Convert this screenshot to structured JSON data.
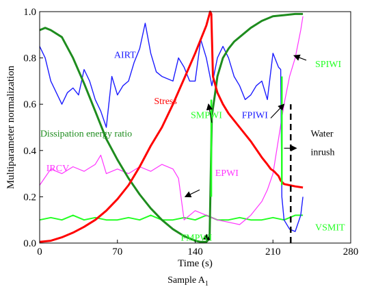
{
  "caption": {
    "text": "Sample A",
    "subscript": "1"
  },
  "chart_data": {
    "type": "line",
    "xlabel": "Time (s)",
    "ylabel": "Multiparameter normalization",
    "xlim": [
      0,
      280
    ],
    "ylim": [
      0,
      1
    ],
    "xticks": [
      "0",
      "70",
      "140",
      "210",
      "280"
    ],
    "yticks": [
      "0.0",
      "0.2",
      "0.4",
      "0.6",
      "0.8",
      "1.0"
    ],
    "grid": false,
    "legend": "none",
    "colors": {
      "AIRT": "#1a1aff",
      "Stress": "#ff0000",
      "Dissipation energy ratio": "#1e8c1e",
      "IRCV": "#ff33ff",
      "SPIWI": "#22ff22",
      "water_inrush_line": "#000000"
    },
    "series": [
      {
        "name": "Stress",
        "x": [
          0,
          10,
          20,
          30,
          40,
          50,
          60,
          70,
          80,
          90,
          100,
          110,
          120,
          130,
          140,
          150,
          153.5,
          154.5,
          156,
          160,
          165,
          170,
          180,
          190,
          200,
          205,
          208,
          211,
          213,
          215,
          217,
          220,
          225,
          230,
          237
        ],
        "y": [
          0.005,
          0.01,
          0.025,
          0.045,
          0.07,
          0.1,
          0.14,
          0.19,
          0.25,
          0.33,
          0.42,
          0.5,
          0.6,
          0.71,
          0.82,
          0.94,
          1.0,
          0.99,
          0.72,
          0.65,
          0.6,
          0.56,
          0.5,
          0.44,
          0.37,
          0.34,
          0.32,
          0.31,
          0.3,
          0.29,
          0.27,
          0.255,
          0.25,
          0.245,
          0.24
        ]
      },
      {
        "name": "Dissipation energy ratio",
        "x": [
          0,
          5,
          10,
          20,
          30,
          40,
          50,
          60,
          70,
          80,
          90,
          100,
          110,
          120,
          130,
          140,
          145,
          150,
          153,
          154,
          155,
          158,
          160,
          165,
          170,
          175,
          180,
          190,
          200,
          210,
          220,
          230,
          237
        ],
        "y": [
          0.92,
          0.93,
          0.92,
          0.89,
          0.8,
          0.69,
          0.57,
          0.45,
          0.36,
          0.28,
          0.21,
          0.15,
          0.1,
          0.06,
          0.03,
          0.01,
          0.005,
          0.005,
          0.02,
          0.3,
          0.55,
          0.65,
          0.72,
          0.8,
          0.84,
          0.87,
          0.89,
          0.93,
          0.96,
          0.98,
          0.985,
          0.99,
          0.99
        ]
      },
      {
        "name": "AIRT",
        "x": [
          0,
          5,
          10,
          15,
          20,
          25,
          30,
          35,
          40,
          45,
          50,
          55,
          60,
          65,
          70,
          75,
          80,
          85,
          90,
          95,
          100,
          105,
          110,
          115,
          120,
          125,
          130,
          135,
          140,
          145,
          150,
          155,
          160,
          165,
          170,
          175,
          180,
          185,
          190,
          195,
          200,
          205,
          210,
          215,
          217,
          218,
          220,
          225,
          230,
          235,
          237
        ],
        "y": [
          0.85,
          0.8,
          0.7,
          0.65,
          0.6,
          0.65,
          0.67,
          0.64,
          0.75,
          0.7,
          0.62,
          0.57,
          0.5,
          0.72,
          0.64,
          0.68,
          0.7,
          0.78,
          0.84,
          0.95,
          0.82,
          0.74,
          0.72,
          0.71,
          0.7,
          0.8,
          0.76,
          0.7,
          0.7,
          0.88,
          0.8,
          0.68,
          0.8,
          0.85,
          0.8,
          0.72,
          0.68,
          0.62,
          0.64,
          0.68,
          0.7,
          0.62,
          0.82,
          0.76,
          0.75,
          0.2,
          0.1,
          0.06,
          0.05,
          0.12,
          0.2
        ]
      },
      {
        "name": "IRCV",
        "x": [
          0,
          10,
          20,
          30,
          40,
          50,
          55,
          60,
          70,
          80,
          90,
          100,
          110,
          120,
          125,
          130,
          140,
          150,
          160,
          170,
          180,
          190,
          200,
          205,
          210,
          215,
          220,
          225,
          230,
          235,
          237
        ],
        "y": [
          0.25,
          0.32,
          0.3,
          0.33,
          0.31,
          0.34,
          0.38,
          0.3,
          0.32,
          0.3,
          0.33,
          0.31,
          0.34,
          0.32,
          0.28,
          0.1,
          0.14,
          0.12,
          0.1,
          0.09,
          0.08,
          0.12,
          0.18,
          0.23,
          0.3,
          0.45,
          0.6,
          0.72,
          0.8,
          0.92,
          0.98
        ]
      },
      {
        "name": "SPIWI",
        "x": [
          0,
          10,
          20,
          30,
          40,
          50,
          60,
          70,
          80,
          90,
          100,
          110,
          120,
          130,
          140,
          150,
          160,
          170,
          180,
          190,
          200,
          210,
          220,
          230,
          237
        ],
        "y": [
          0.1,
          0.11,
          0.1,
          0.12,
          0.1,
          0.11,
          0.1,
          0.1,
          0.11,
          0.1,
          0.12,
          0.1,
          0.1,
          0.11,
          0.1,
          0.12,
          0.1,
          0.1,
          0.11,
          0.1,
          0.1,
          0.11,
          0.1,
          0.12,
          0.12
        ]
      }
    ],
    "spikes": [
      {
        "name": "SMPWI",
        "x": 154.5,
        "y_from": 0.2,
        "y_to": 0.62
      },
      {
        "name": "FPIWI",
        "x": 218,
        "y_from": 0.72,
        "y_to": 0.25
      }
    ],
    "water_inrush_line": {
      "x": 226,
      "y_from": 0.0,
      "y_to": 0.6
    },
    "annotations": [
      {
        "text": "AIRT",
        "at": [
          67,
          0.8
        ],
        "color": "#1a1aff"
      },
      {
        "text": "Stress",
        "at": [
          103,
          0.6
        ],
        "color": "#ff0000"
      },
      {
        "text": "SMPWI",
        "at": [
          136,
          0.54
        ],
        "color": "#22ff22"
      },
      {
        "text": "FPIWI",
        "at": [
          182,
          0.54
        ],
        "color": "#1a1aff"
      },
      {
        "text": "SPIWI",
        "at": [
          248,
          0.76
        ],
        "color": "#22ff22"
      },
      {
        "text": "Dissipation energy ratio",
        "at": [
          0.5,
          0.46
        ],
        "color": "#1e8c1e"
      },
      {
        "text": "IRCV",
        "at": [
          6,
          0.31
        ],
        "color": "#ff33ff"
      },
      {
        "text": "EPWI",
        "at": [
          158,
          0.29
        ],
        "color": "#ff33ff"
      },
      {
        "text": "Water",
        "at": [
          244,
          0.46
        ],
        "color": "#000000"
      },
      {
        "text": "inrush",
        "at": [
          244,
          0.38
        ],
        "color": "#000000"
      },
      {
        "text": "FMPWI",
        "at": [
          127,
          0.01
        ],
        "color": "#22ff22"
      },
      {
        "text": "VSMIT",
        "at": [
          248,
          0.055
        ],
        "color": "#22ff22"
      }
    ],
    "arrows": [
      {
        "from": [
          155,
          0.52
        ],
        "to": [
          152,
          0.6
        ]
      },
      {
        "from": [
          208,
          0.54
        ],
        "to": [
          220,
          0.6
        ]
      },
      {
        "from": [
          240,
          0.79
        ],
        "to": [
          229,
          0.81
        ]
      },
      {
        "from": [
          220,
          0.41
        ],
        "to": [
          231,
          0.41
        ]
      },
      {
        "from": [
          148,
          0.03
        ],
        "to": [
          153,
          0.015
        ]
      },
      {
        "from": [
          144,
          0.23
        ],
        "to": [
          131,
          0.2
        ]
      }
    ]
  }
}
